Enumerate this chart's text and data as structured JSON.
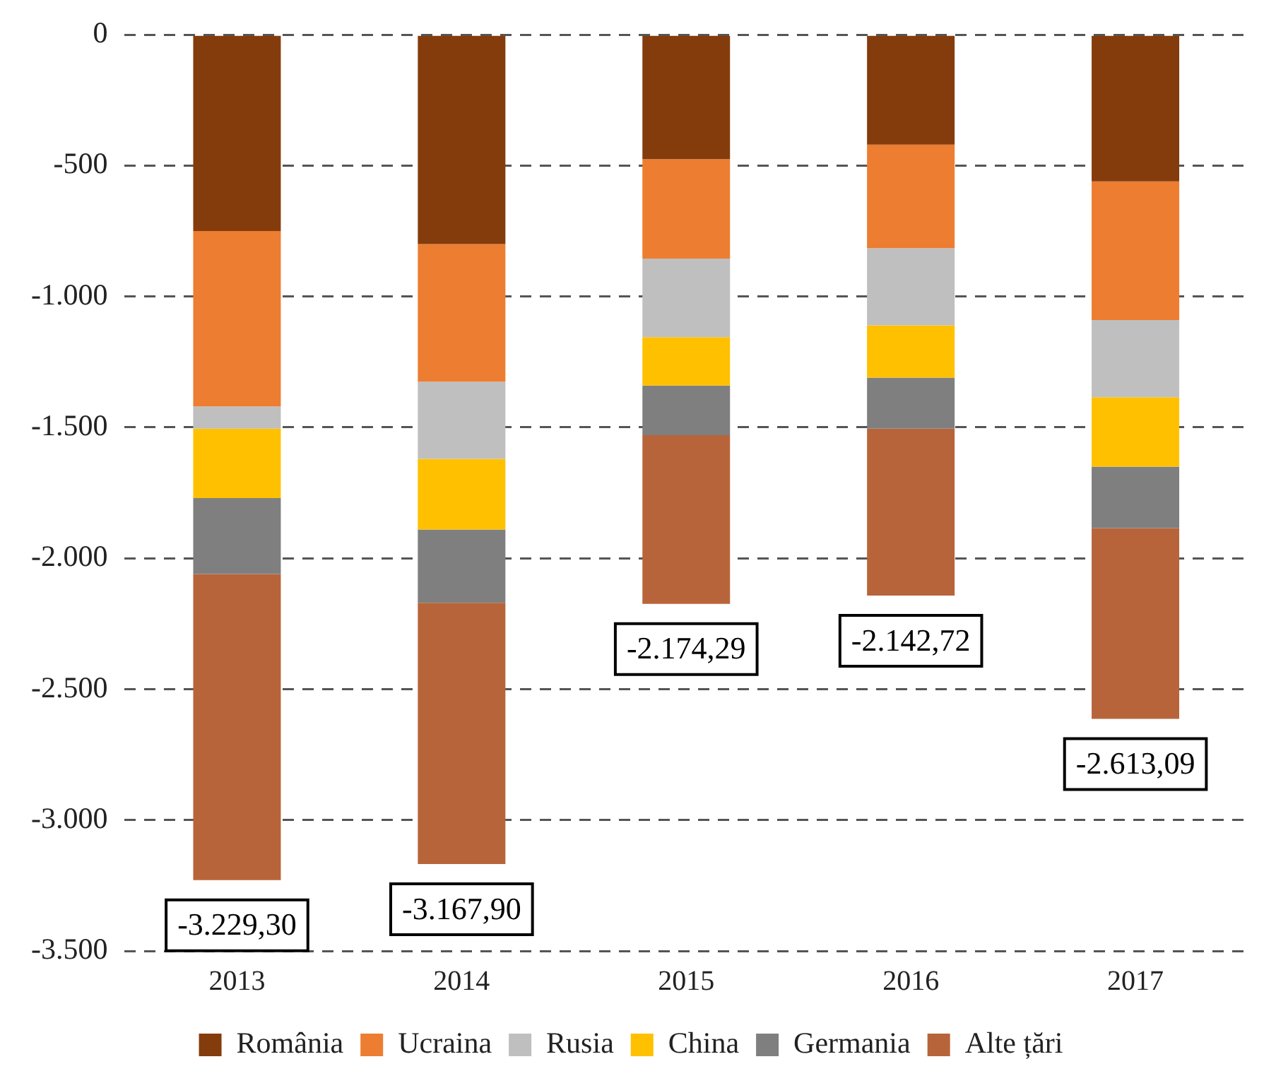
{
  "chart_data": {
    "type": "bar",
    "stacked": true,
    "categories": [
      "2013",
      "2014",
      "2015",
      "2016",
      "2017"
    ],
    "series": [
      {
        "name": "România",
        "color": "#843c0c",
        "values": [
          -750,
          -800,
          -475,
          -420,
          -560
        ]
      },
      {
        "name": "Ucraina",
        "color": "#ed7d31",
        "values": [
          -670,
          -525,
          -380,
          -395,
          -530
        ]
      },
      {
        "name": "Rusia",
        "color": "#bfbfbf",
        "values": [
          -85,
          -295,
          -300,
          -295,
          -295
        ]
      },
      {
        "name": "China",
        "color": "#ffc000",
        "values": [
          -265,
          -270,
          -185,
          -200,
          -265
        ]
      },
      {
        "name": "Germania",
        "color": "#7f7f7f",
        "values": [
          -290,
          -280,
          -190,
          -195,
          -235
        ]
      },
      {
        "name": "Alte țări",
        "color": "#b8643a",
        "values": [
          -1169.3,
          -997.9,
          -644.29,
          -637.72,
          -728.09
        ]
      }
    ],
    "totals": [
      "-3.229,30",
      "-3.167,90",
      "-2.174,29",
      "-2.142,72",
      "-2.613,09"
    ],
    "ylim": [
      -3500,
      0
    ],
    "yticks": [
      {
        "value": -3500,
        "label": "-3.500"
      },
      {
        "value": -3000,
        "label": "-3.000"
      },
      {
        "value": -2500,
        "label": "-2.500"
      },
      {
        "value": -2000,
        "label": "-2.000"
      },
      {
        "value": -1500,
        "label": "-1.500"
      },
      {
        "value": -1000,
        "label": "-1.000"
      },
      {
        "value": -500,
        "label": "-500"
      },
      0
    ],
    "grid": "y",
    "legend": "bottom"
  }
}
